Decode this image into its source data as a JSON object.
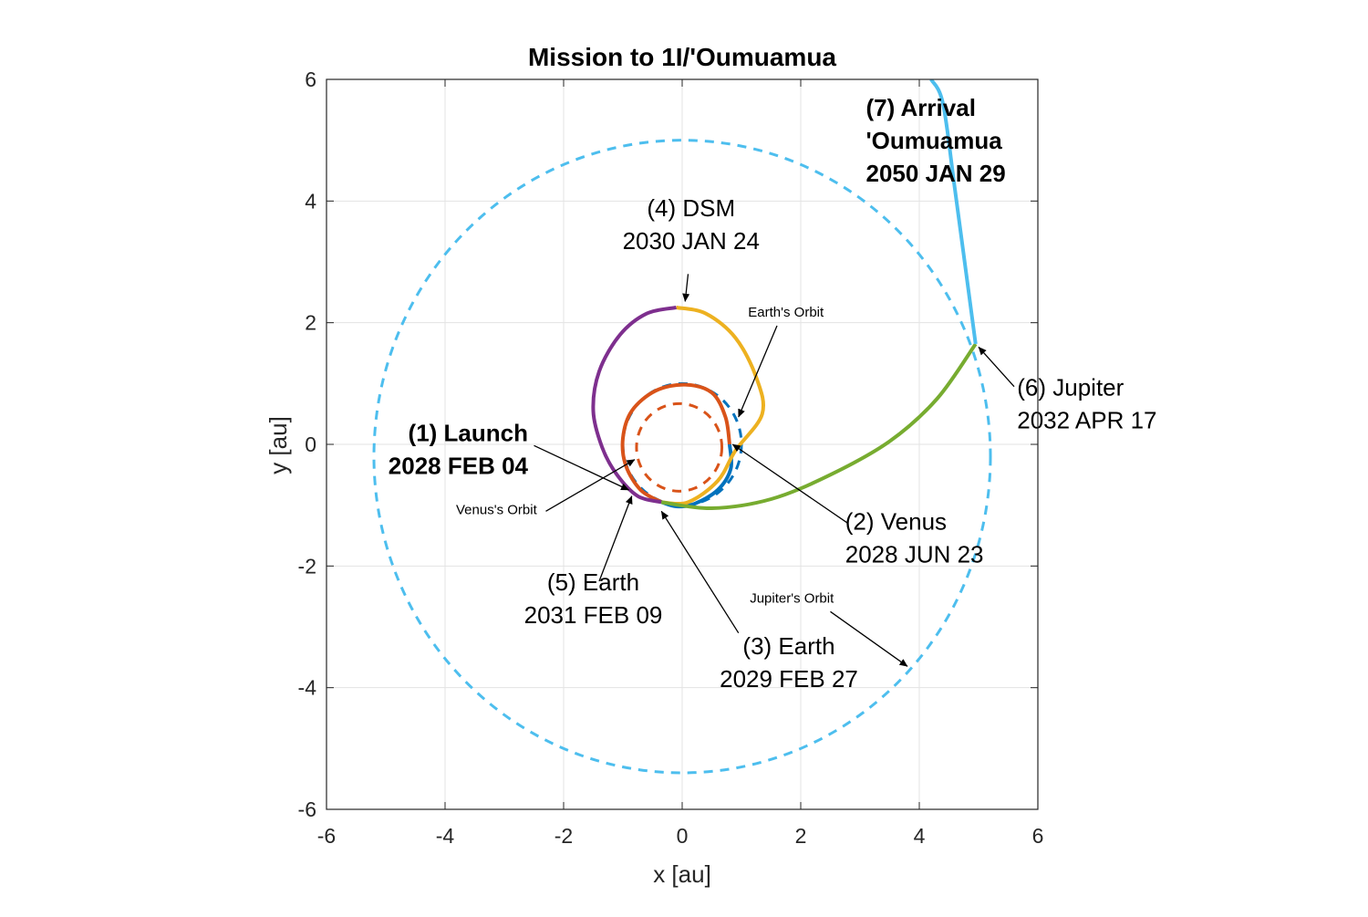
{
  "chart_data": {
    "type": "line",
    "title": "Mission to 1I/'Oumuamua",
    "xlabel": "x [au]",
    "ylabel": "y [au]",
    "xlim": [
      -6,
      6
    ],
    "ylim": [
      -6,
      6
    ],
    "xticks": [
      "-6",
      "-4",
      "-2",
      "0",
      "2",
      "4",
      "6"
    ],
    "yticks": [
      "6",
      "4",
      "2",
      "0",
      "-2",
      "-4",
      "-6"
    ],
    "grid": true,
    "orbits": [
      {
        "label": "Venus's Orbit",
        "center": [
          -0.05,
          -0.05
        ],
        "radius": 0.72,
        "color": "#d95319",
        "style": "dashed"
      },
      {
        "label": "Earth's Orbit",
        "center": [
          0.0,
          0.0
        ],
        "radius": 1.0,
        "color": "#0072bd",
        "style": "dashed"
      },
      {
        "label": "Jupiter's Orbit",
        "center": [
          0.0,
          -0.2
        ],
        "radius": 5.2,
        "color": "#4dbeee",
        "style": "dashed"
      }
    ],
    "series": [
      {
        "color": "#d95319",
        "points": [
          [
            -0.35,
            -0.95
          ],
          [
            -0.7,
            -0.75
          ],
          [
            -0.95,
            -0.35
          ],
          [
            -1.0,
            0.1
          ],
          [
            -0.85,
            0.55
          ],
          [
            -0.45,
            0.88
          ],
          [
            0.05,
            0.98
          ],
          [
            0.5,
            0.85
          ],
          [
            0.73,
            0.45
          ],
          [
            0.8,
            0.0
          ]
        ]
      },
      {
        "color": "#0072bd",
        "points": [
          [
            0.8,
            0.0
          ],
          [
            0.82,
            -0.4
          ],
          [
            0.6,
            -0.75
          ],
          [
            0.2,
            -0.98
          ],
          [
            -0.1,
            -1.02
          ],
          [
            -0.35,
            -0.95
          ]
        ]
      },
      {
        "color": "#edb120",
        "points": [
          [
            -0.35,
            -0.95
          ],
          [
            0.1,
            -0.95
          ],
          [
            0.6,
            -0.6
          ],
          [
            0.9,
            -0.1
          ],
          [
            1.35,
            0.5
          ],
          [
            1.25,
            1.1
          ],
          [
            0.9,
            1.75
          ],
          [
            0.4,
            2.15
          ],
          [
            -0.1,
            2.25
          ]
        ]
      },
      {
        "color": "#7e2f8e",
        "points": [
          [
            -0.1,
            2.25
          ],
          [
            -0.6,
            2.15
          ],
          [
            -1.05,
            1.8
          ],
          [
            -1.4,
            1.2
          ],
          [
            -1.5,
            0.55
          ],
          [
            -1.35,
            -0.05
          ],
          [
            -1.1,
            -0.5
          ],
          [
            -0.75,
            -0.85
          ],
          [
            -0.35,
            -0.95
          ]
        ]
      },
      {
        "color": "#77ac30",
        "points": [
          [
            -0.35,
            -0.95
          ],
          [
            0.5,
            -1.05
          ],
          [
            1.5,
            -0.9
          ],
          [
            2.5,
            -0.5
          ],
          [
            3.5,
            0.05
          ],
          [
            4.3,
            0.75
          ],
          [
            4.95,
            1.65
          ]
        ]
      },
      {
        "color": "#4dbeee",
        "points": [
          [
            4.95,
            1.65
          ],
          [
            4.6,
            4.2
          ],
          [
            4.4,
            5.6
          ],
          [
            4.2,
            6.0
          ]
        ]
      }
    ],
    "annotations": [
      {
        "lines": [
          "(1) Launch",
          "2028 FEB 04"
        ],
        "bold": true,
        "anchor": "end",
        "text_at": [
          -2.6,
          0.05
        ],
        "arrow_from": [
          -2.5,
          -0.02
        ],
        "arrow_to": [
          -0.9,
          -0.75
        ]
      },
      {
        "lines": [
          "(2) Venus",
          "2028 JUN 23"
        ],
        "bold": false,
        "anchor": "start",
        "text_at": [
          2.75,
          -1.4
        ],
        "arrow_from": [
          2.8,
          -1.3
        ],
        "arrow_to": [
          0.85,
          0.0
        ]
      },
      {
        "lines": [
          "(3) Earth",
          "2029 FEB 27"
        ],
        "bold": false,
        "anchor": "middle",
        "text_at": [
          1.8,
          -3.45
        ],
        "arrow_from": [
          0.95,
          -3.1
        ],
        "arrow_to": [
          -0.35,
          -1.1
        ]
      },
      {
        "lines": [
          "(4) DSM",
          "2030 JAN 24"
        ],
        "bold": false,
        "anchor": "middle",
        "text_at": [
          0.15,
          3.75
        ],
        "arrow_from": [
          0.1,
          2.8
        ],
        "arrow_to": [
          0.05,
          2.35
        ]
      },
      {
        "lines": [
          "(5) Earth",
          "2031 FEB 09"
        ],
        "bold": false,
        "anchor": "middle",
        "text_at": [
          -1.5,
          -2.4
        ],
        "arrow_from": [
          -1.4,
          -2.25
        ],
        "arrow_to": [
          -0.85,
          -0.85
        ]
      },
      {
        "lines": [
          "(6) Jupiter",
          "2032 APR 17"
        ],
        "bold": false,
        "anchor": "start",
        "text_at": [
          5.65,
          0.8
        ],
        "arrow_from": [
          5.6,
          0.95
        ],
        "arrow_to": [
          5.0,
          1.6
        ]
      },
      {
        "lines": [
          "(7) Arrival",
          "'Oumuamua",
          "2050 JAN 29"
        ],
        "bold": true,
        "anchor": "start",
        "text_at": [
          3.1,
          5.4
        ],
        "arrow_from": null,
        "arrow_to": null
      },
      {
        "lines": [
          "Earth's Orbit"
        ],
        "bold": false,
        "small": true,
        "anchor": "middle",
        "text_at": [
          1.75,
          2.1
        ],
        "arrow_from": [
          1.6,
          1.95
        ],
        "arrow_to": [
          0.95,
          0.45
        ]
      },
      {
        "lines": [
          "Venus's Orbit"
        ],
        "bold": false,
        "small": true,
        "anchor": "end",
        "text_at": [
          -2.45,
          -1.15
        ],
        "arrow_from": [
          -2.3,
          -1.1
        ],
        "arrow_to": [
          -0.8,
          -0.25
        ]
      },
      {
        "lines": [
          "Jupiter's Orbit"
        ],
        "bold": false,
        "small": true,
        "anchor": "middle",
        "text_at": [
          1.85,
          -2.6
        ],
        "arrow_from": [
          2.5,
          -2.75
        ],
        "arrow_to": [
          3.8,
          -3.65
        ]
      }
    ]
  }
}
